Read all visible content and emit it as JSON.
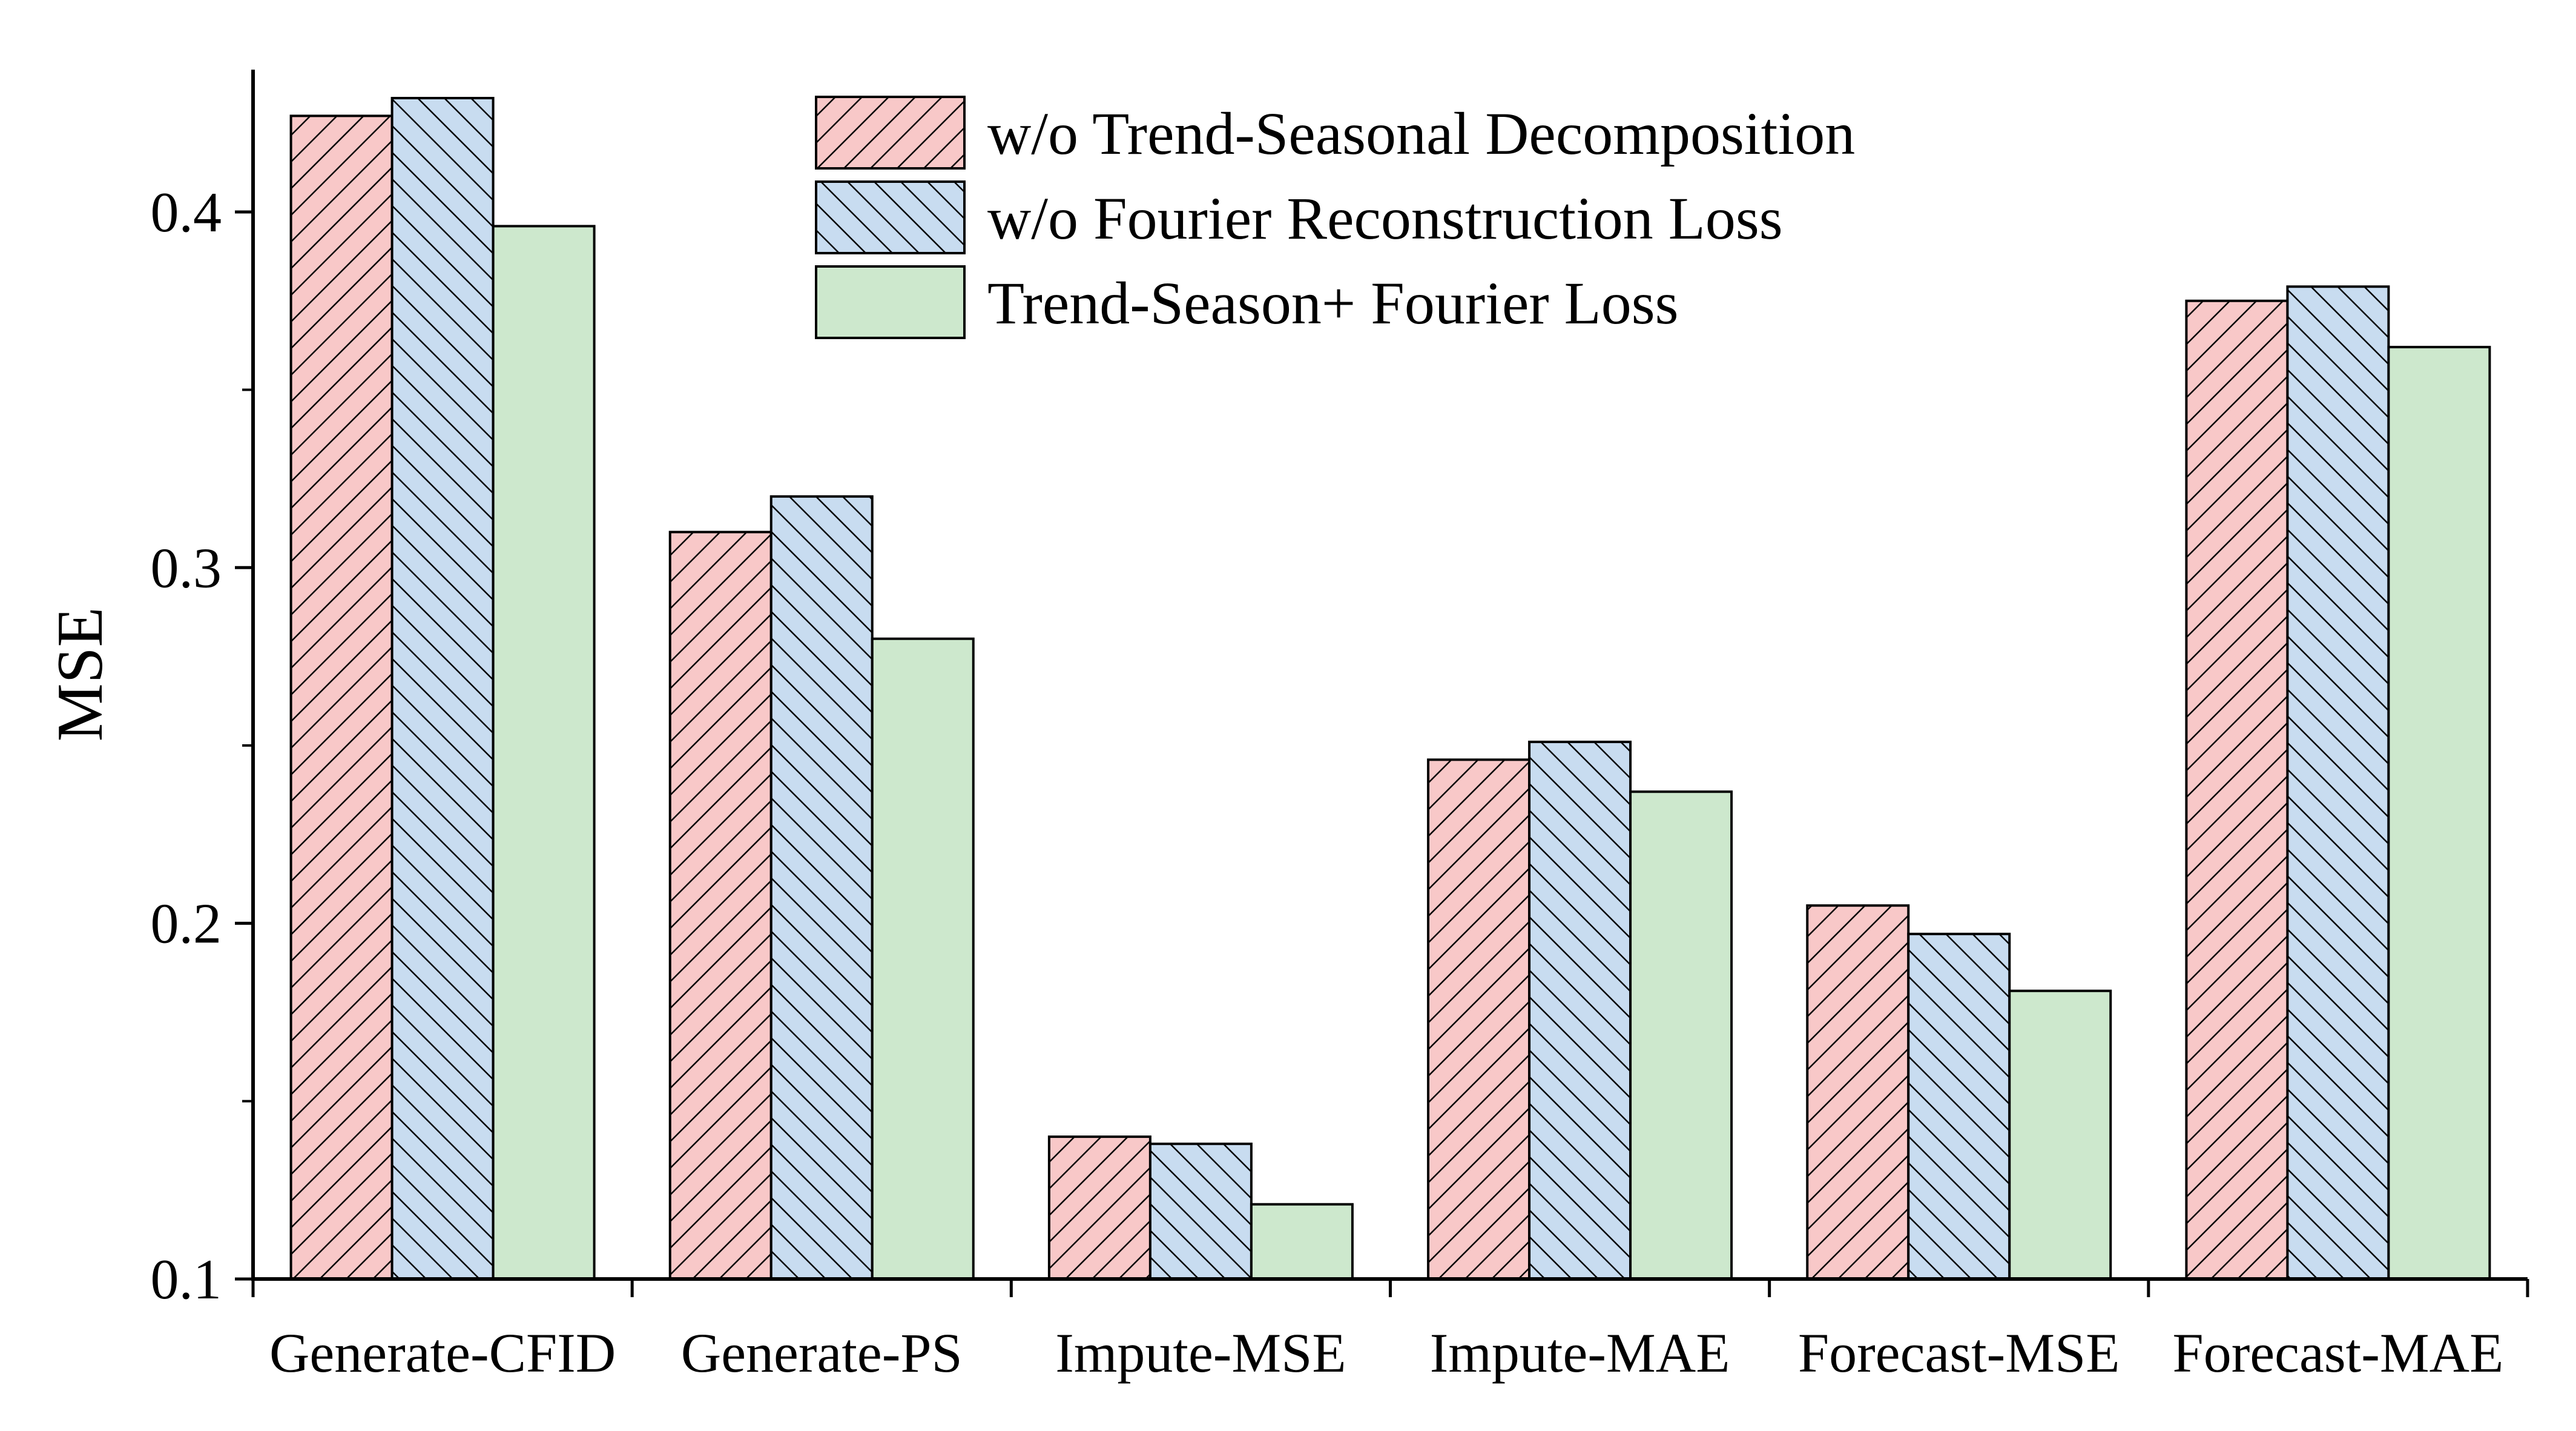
{
  "chart_data": {
    "type": "bar",
    "title": "",
    "xlabel": "",
    "ylabel": "MSE",
    "ylim": [
      0.1,
      0.44
    ],
    "yticks": [
      0.1,
      0.2,
      0.3,
      0.4
    ],
    "ytick_labels": [
      "0.1",
      "0.2",
      "0.3",
      "0.4"
    ],
    "grid": false,
    "legend_position": "top-center",
    "categories": [
      "Generate-CFID",
      "Generate-PS",
      "Impute-MSE",
      "Impute-MAE",
      "Forecast-MSE",
      "Forecast-MAE"
    ],
    "series": [
      {
        "name": "w/o Trend-Seasonal Decomposition",
        "values": [
          0.427,
          0.31,
          0.14,
          0.246,
          0.205,
          0.375
        ],
        "color": "#f8c8c8",
        "hatch": "forward-diagonal"
      },
      {
        "name": "w/o Fourier Reconstruction Loss",
        "values": [
          0.432,
          0.32,
          0.138,
          0.251,
          0.197,
          0.379
        ],
        "color": "#c8dcf0",
        "hatch": "back-diagonal"
      },
      {
        "name": "Trend-Season+ Fourier Loss",
        "values": [
          0.396,
          0.28,
          0.121,
          0.237,
          0.181,
          0.362
        ],
        "color": "#cde8cd",
        "hatch": "none"
      }
    ]
  }
}
